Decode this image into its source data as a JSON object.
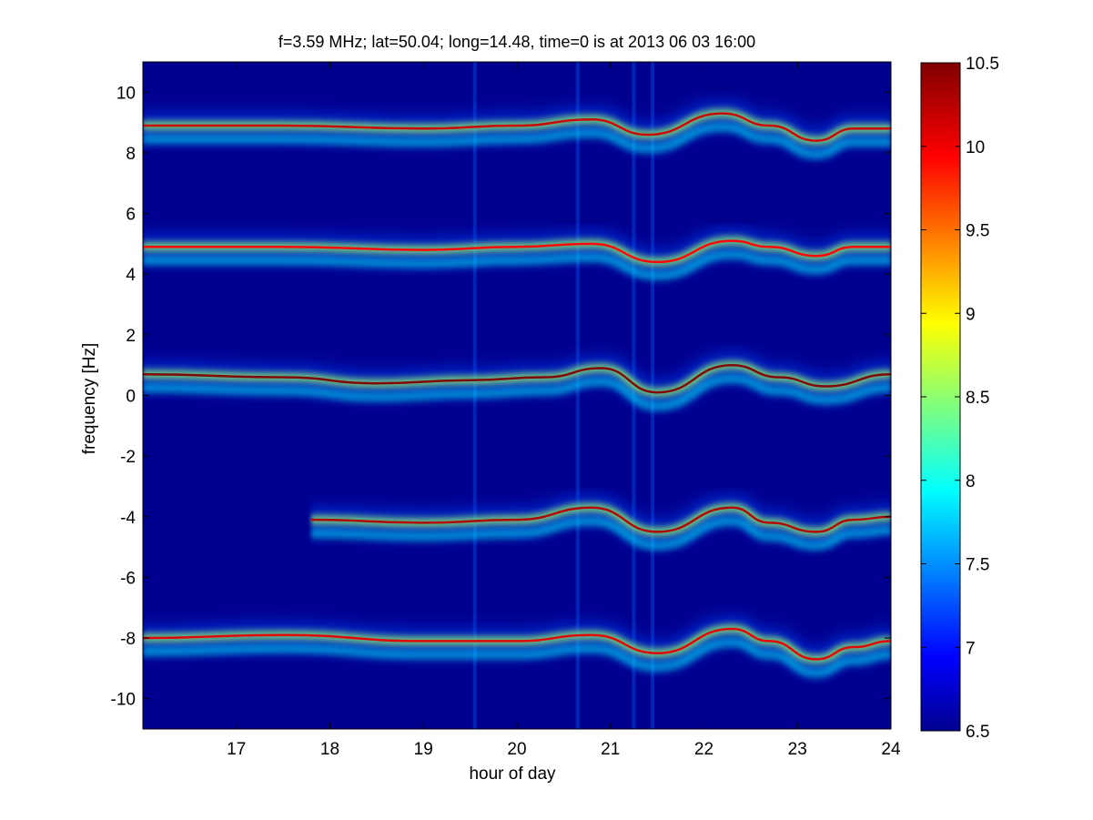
{
  "chart_data": {
    "type": "heatmap",
    "title": "f=3.59 MHz;  lat=50.04; long=14.48, time=0 is at 2013 06 03 16:00",
    "xlabel": "hour of day",
    "ylabel": "frequency [Hz]",
    "xlim": [
      16,
      24
    ],
    "ylim": [
      -11,
      11
    ],
    "x_ticks": [
      17,
      18,
      19,
      20,
      21,
      22,
      23,
      24
    ],
    "y_ticks": [
      10,
      8,
      6,
      4,
      2,
      0,
      -2,
      -4,
      -6,
      -8,
      -10
    ],
    "colorbar": {
      "range": [
        6.5,
        10.5
      ],
      "ticks": [
        10.5,
        10,
        9.5,
        9,
        8.5,
        8,
        7.5,
        7,
        6.5
      ],
      "colormap": "jet"
    },
    "background_value": 6.5,
    "traces": [
      {
        "center_hz": 8.9,
        "start_hour": 16.0,
        "peak_value": 10.2,
        "points": [
          [
            16.0,
            8.9
          ],
          [
            17.5,
            8.9
          ],
          [
            19.0,
            8.8
          ],
          [
            20.0,
            8.9
          ],
          [
            20.8,
            9.1
          ],
          [
            21.4,
            8.6
          ],
          [
            22.2,
            9.3
          ],
          [
            22.7,
            8.9
          ],
          [
            23.2,
            8.4
          ],
          [
            23.6,
            8.8
          ],
          [
            24.0,
            8.8
          ]
        ]
      },
      {
        "center_hz": 4.9,
        "start_hour": 16.0,
        "peak_value": 10.0,
        "points": [
          [
            16.0,
            4.9
          ],
          [
            17.5,
            4.9
          ],
          [
            19.0,
            4.8
          ],
          [
            20.0,
            4.9
          ],
          [
            20.8,
            5.0
          ],
          [
            21.5,
            4.4
          ],
          [
            22.3,
            5.1
          ],
          [
            22.7,
            4.9
          ],
          [
            23.2,
            4.6
          ],
          [
            23.6,
            4.9
          ],
          [
            24.0,
            4.9
          ]
        ]
      },
      {
        "center_hz": 0.6,
        "start_hour": 16.0,
        "peak_value": 10.5,
        "points": [
          [
            16.0,
            0.7
          ],
          [
            17.5,
            0.6
          ],
          [
            18.5,
            0.4
          ],
          [
            19.5,
            0.5
          ],
          [
            20.3,
            0.6
          ],
          [
            20.9,
            0.9
          ],
          [
            21.5,
            0.1
          ],
          [
            22.3,
            1.0
          ],
          [
            22.8,
            0.6
          ],
          [
            23.3,
            0.3
          ],
          [
            24.0,
            0.7
          ]
        ]
      },
      {
        "center_hz": -4.1,
        "start_hour": 17.8,
        "peak_value": 10.3,
        "points": [
          [
            17.8,
            -4.1
          ],
          [
            19.0,
            -4.2
          ],
          [
            20.0,
            -4.1
          ],
          [
            20.8,
            -3.7
          ],
          [
            21.5,
            -4.5
          ],
          [
            22.3,
            -3.7
          ],
          [
            22.7,
            -4.2
          ],
          [
            23.2,
            -4.5
          ],
          [
            23.6,
            -4.1
          ],
          [
            24.0,
            -4.0
          ]
        ]
      },
      {
        "center_hz": -8.0,
        "start_hour": 16.0,
        "peak_value": 10.1,
        "points": [
          [
            16.0,
            -8.0
          ],
          [
            17.5,
            -7.9
          ],
          [
            19.0,
            -8.1
          ],
          [
            20.0,
            -8.1
          ],
          [
            20.8,
            -7.9
          ],
          [
            21.5,
            -8.5
          ],
          [
            22.3,
            -7.7
          ],
          [
            22.7,
            -8.1
          ],
          [
            23.2,
            -8.7
          ],
          [
            23.6,
            -8.3
          ],
          [
            24.0,
            -8.1
          ]
        ]
      }
    ],
    "vertical_disturbances_hours": [
      19.55,
      20.65,
      21.25,
      21.45
    ]
  }
}
